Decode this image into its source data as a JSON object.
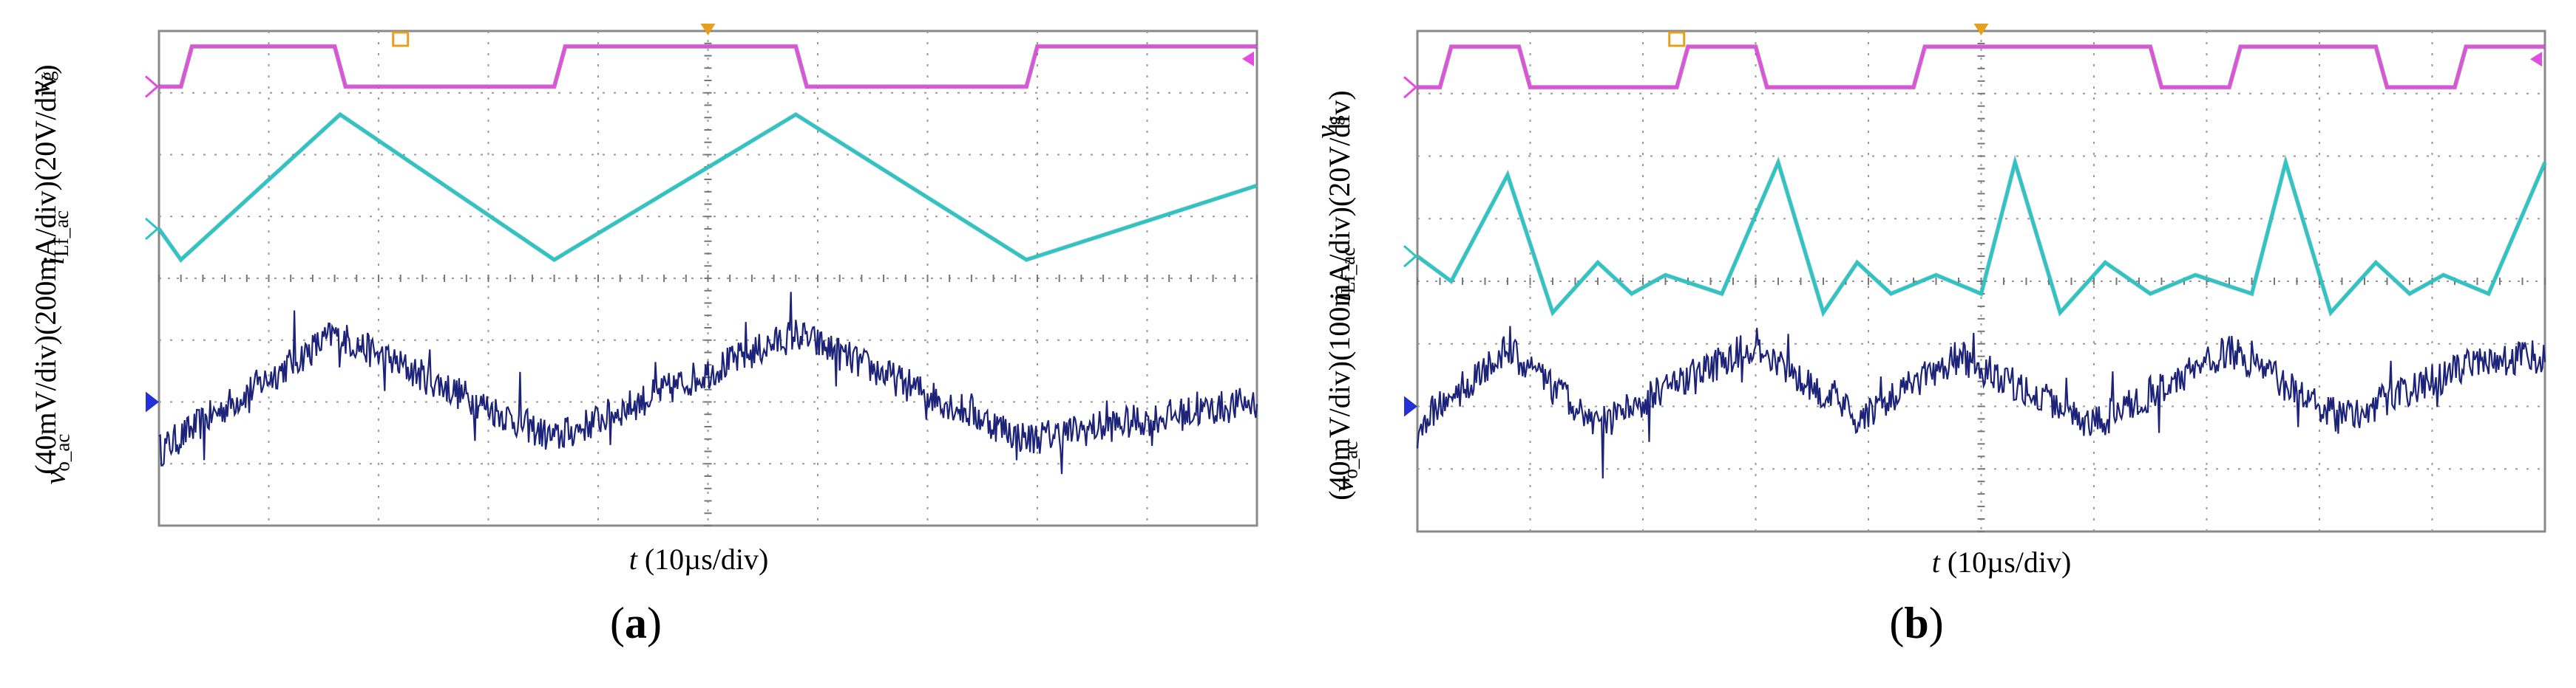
{
  "chart_data": [
    {
      "type": "line",
      "panel_label": "a",
      "x_label": {
        "var": "t",
        "unit": "(10µs/div)"
      },
      "y_labels": [
        {
          "var": "v",
          "sub": "g",
          "scale": "(20V/div)"
        },
        {
          "var": "i",
          "sub": "Lf_ac",
          "scale": "(200mA/div)"
        },
        {
          "var": "v",
          "sub": "o_ac",
          "scale": "(40mV/div)"
        }
      ],
      "grid": "10 x 8 divisions, dotted",
      "x_divisions": 10,
      "y_divisions": 8,
      "series": [
        {
          "channel": "gate",
          "color": "#e14ee0",
          "x": [
            0,
            0.2,
            0.3,
            1.6,
            1.7,
            3.6,
            3.7,
            5.8,
            5.9,
            7.9,
            8.0,
            9.9,
            10.0
          ],
          "y": [
            7.1,
            7.1,
            7.75,
            7.75,
            7.1,
            7.1,
            7.75,
            7.75,
            7.1,
            7.1,
            7.75,
            7.75,
            7.75
          ]
        },
        {
          "channel": "inductor current",
          "color": "#2ec4c4",
          "x": [
            0,
            0.2,
            1.65,
            3.6,
            5.8,
            7.9,
            10.0
          ],
          "y": [
            4.8,
            4.3,
            6.65,
            4.3,
            6.65,
            4.3,
            5.5
          ]
        },
        {
          "channel": "output voltage",
          "color": "#1c2378",
          "x": [
            0,
            1.6,
            3.6,
            5.8,
            7.9,
            10.0
          ],
          "y": [
            1.2,
            3.1,
            1.4,
            3.1,
            1.4,
            2.0
          ]
        }
      ]
    },
    {
      "type": "line",
      "panel_label": "b",
      "x_label": {
        "var": "t",
        "unit": "(10µs/div)"
      },
      "y_labels": [
        {
          "var": "v",
          "sub": "g",
          "scale": "(20V/div)"
        },
        {
          "var": "i",
          "sub": "Lf_ac",
          "scale": "(100mA/div)"
        },
        {
          "var": "v",
          "sub": "o_ac",
          "scale": "(40mV/div)"
        }
      ],
      "grid": "10 x 8 divisions, dotted",
      "x_divisions": 10,
      "y_divisions": 8,
      "series": [
        {
          "channel": "gate",
          "color": "#e14ee0",
          "x": [
            0,
            0.2,
            0.3,
            0.9,
            1.0,
            2.3,
            2.4,
            3.0,
            3.1,
            4.4,
            4.5,
            6.5,
            6.6,
            7.2,
            7.3,
            8.5,
            8.6,
            9.2,
            9.3,
            10.0
          ],
          "y": [
            7.1,
            7.1,
            7.75,
            7.75,
            7.1,
            7.1,
            7.75,
            7.75,
            7.1,
            7.1,
            7.75,
            7.75,
            7.1,
            7.1,
            7.75,
            7.75,
            7.1,
            7.1,
            7.75,
            7.75
          ]
        },
        {
          "channel": "inductor current",
          "color": "#2ec4c4",
          "x": [
            0,
            0.3,
            0.8,
            1.2,
            1.6,
            1.9,
            2.2,
            2.7,
            3.2,
            3.6,
            3.9,
            4.2,
            4.6,
            5.0,
            5.3,
            5.7,
            6.1,
            6.5,
            6.9,
            7.4,
            7.7,
            8.1,
            8.5,
            8.8,
            9.1,
            9.5,
            10.0
          ],
          "y": [
            4.4,
            4.0,
            5.7,
            3.5,
            4.3,
            3.8,
            4.1,
            3.8,
            5.9,
            3.5,
            4.3,
            3.8,
            4.1,
            3.8,
            5.9,
            3.5,
            4.3,
            3.8,
            4.1,
            3.8,
            5.9,
            3.5,
            4.3,
            3.8,
            4.1,
            3.8,
            5.9
          ]
        },
        {
          "channel": "output voltage",
          "color": "#1c2378",
          "x": [
            0,
            0.8,
            1.6,
            3.0,
            3.9,
            4.8,
            6.0,
            7.2,
            8.2,
            9.4,
            10.0
          ],
          "y": [
            1.7,
            2.9,
            1.7,
            3.0,
            1.8,
            2.8,
            1.7,
            2.9,
            1.8,
            2.7,
            2.8
          ]
        }
      ]
    }
  ]
}
